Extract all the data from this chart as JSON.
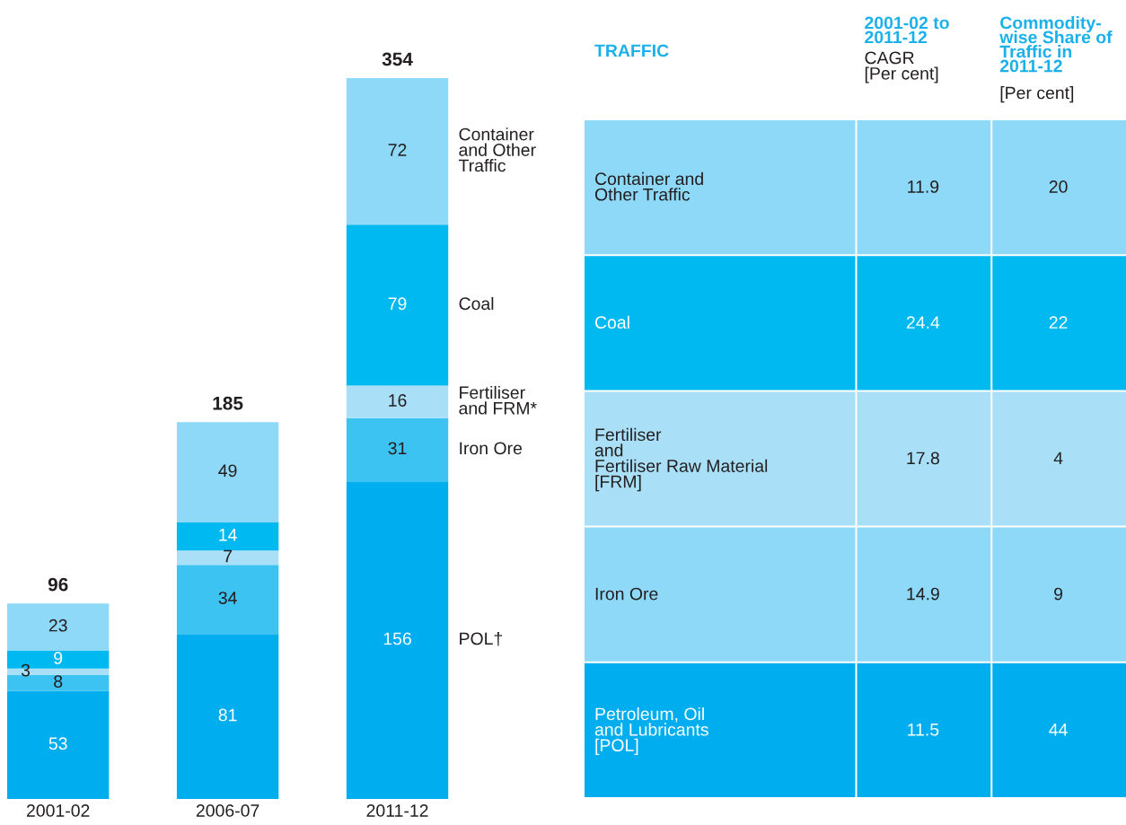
{
  "chart_data": [
    {
      "type": "bar",
      "stacked": true,
      "data_labels": true,
      "legend": false,
      "categories": [
        "2001-02",
        "2006-07",
        "2011-12"
      ],
      "series": [
        {
          "name": "POL†",
          "color": "#00aeef",
          "values": [
            53,
            81,
            156
          ]
        },
        {
          "name": "Iron Ore",
          "color": "#3dc3f1",
          "values": [
            8,
            34,
            31
          ]
        },
        {
          "name": "Fertiliser\nand FRM*",
          "color": "#a9e0f8",
          "values": [
            3,
            7,
            16
          ]
        },
        {
          "name": "Coal",
          "color": "#00b9f1",
          "values": [
            9,
            14,
            79
          ]
        },
        {
          "name": "Container\nand Other\nTraffic",
          "color": "#8ed8f8",
          "values": [
            23,
            49,
            72
          ]
        }
      ],
      "totals": [
        "96",
        "185",
        "354"
      ]
    },
    {
      "type": "other",
      "categories": [
        "TRAFFIC",
        "2001-02 to\n2011-12",
        "Commodity-\nwise Share of\nTraffic in\n2011-12"
      ],
      "annotations": [
        "CAGR\n[Per cent]",
        "[Per cent]"
      ],
      "y_categories": [
        "Container and\nOther Traffic",
        "Coal",
        "Fertiliser\nand\nFertiliser Raw Material\n[FRM]",
        "Iron Ore",
        "Petroleum, Oil\nand Lubricants\n[POL]"
      ],
      "colors": [
        "#8ed8f8",
        "#00b9f1",
        "#a9e0f8",
        "#8ed8f8",
        "#00aeef"
      ],
      "cell_labels": [
        [
          "11.9",
          "20"
        ],
        [
          "24.4",
          "22"
        ],
        [
          "17.8",
          "4"
        ],
        [
          "14.9",
          "9"
        ],
        [
          "11.5",
          "44"
        ]
      ]
    }
  ]
}
